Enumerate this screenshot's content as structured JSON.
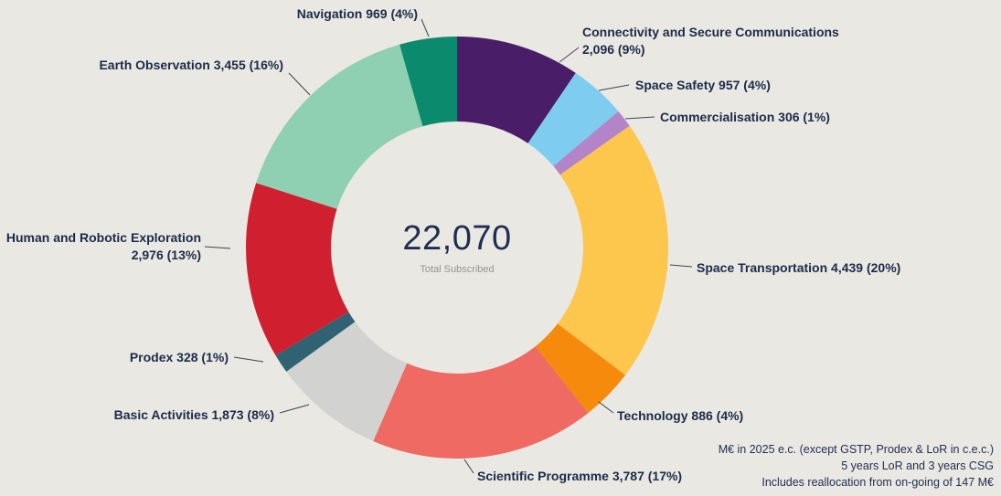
{
  "chart_data": {
    "type": "pie",
    "subtype": "donut",
    "title": "",
    "units": "M€",
    "total": 22070,
    "center_total": "22,070",
    "center_label": "Total Subscribed",
    "legend_position": "outside-labels",
    "segments": [
      {
        "name": "Connectivity and Secure Communications",
        "value": 2096,
        "value_display": "2,096",
        "pct": 9,
        "color": "#4a1d69",
        "label_lines": [
          "Connectivity and Secure Communications",
          "2,096 (9%)"
        ]
      },
      {
        "name": "Space Safety",
        "value": 957,
        "value_display": "957",
        "pct": 4,
        "color": "#7ecdf1",
        "label_lines": [
          "Space Safety 957 (4%)"
        ]
      },
      {
        "name": "Commercialisation",
        "value": 306,
        "value_display": "306",
        "pct": 1,
        "color": "#b484c8",
        "label_lines": [
          "Commercialisation 306 (1%)"
        ]
      },
      {
        "name": "Space Transportation",
        "value": 4439,
        "value_display": "4,439",
        "pct": 20,
        "color": "#fdc74e",
        "label_lines": [
          "Space Transportation 4,439 (20%)"
        ]
      },
      {
        "name": "Technology",
        "value": 886,
        "value_display": "886",
        "pct": 4,
        "color": "#f68a0c",
        "label_lines": [
          "Technology 886 (4%)"
        ]
      },
      {
        "name": "Scientific Programme",
        "value": 3787,
        "value_display": "3,787",
        "pct": 17,
        "color": "#ee6a63",
        "label_lines": [
          "Scientific Programme 3,787 (17%)"
        ]
      },
      {
        "name": "Basic Activities",
        "value": 1873,
        "value_display": "1,873",
        "pct": 8,
        "color": "#d2d2d0",
        "label_lines": [
          "Basic Activities 1,873 (8%)"
        ]
      },
      {
        "name": "Prodex",
        "value": 328,
        "value_display": "328",
        "pct": 1,
        "color": "#306273",
        "label_lines": [
          "Prodex 328 (1%)"
        ]
      },
      {
        "name": "Human and Robotic Exploration",
        "value": 2976,
        "value_display": "2,976",
        "pct": 13,
        "color": "#d02030",
        "label_lines": [
          "Human and Robotic Exploration",
          "2,976 (13%)"
        ]
      },
      {
        "name": "Earth Observation",
        "value": 3455,
        "value_display": "3,455",
        "pct": 16,
        "color": "#8fcfb2",
        "label_lines": [
          "Earth Observation 3,455 (16%)"
        ]
      },
      {
        "name": "Navigation",
        "value": 969,
        "value_display": "969",
        "pct": 4,
        "color": "#0b8a6d",
        "label_lines": [
          "Navigation 969 (4%)"
        ]
      }
    ],
    "footnotes": [
      "M€ in 2025 e.c. (except GSTP, Prodex & LoR in c.e.c.)",
      "5 years LoR and 3 years CSG",
      "Includes reallocation from on-going of 147 M€"
    ]
  }
}
